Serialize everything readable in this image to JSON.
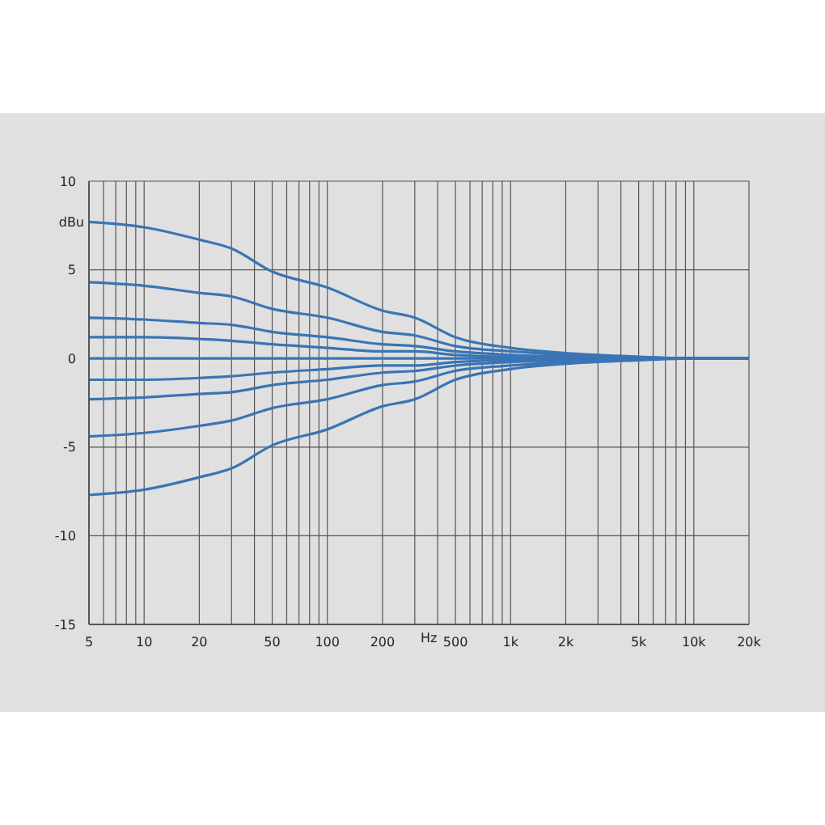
{
  "chart_data": {
    "type": "line",
    "xlabel": "Hz",
    "ylabel": "dBu",
    "log": "x",
    "grid": true,
    "legend": false,
    "marker": "none",
    "line_style": "solid",
    "x": [
      5,
      10,
      20,
      30,
      50,
      100,
      200,
      300,
      500,
      1000,
      2000,
      5000,
      10000,
      20000
    ],
    "xlim": [
      5,
      20000
    ],
    "xticks": [
      5,
      {
        "value": 6,
        "label": null
      },
      {
        "value": 7,
        "label": null
      },
      {
        "value": 8,
        "label": null
      },
      {
        "value": 9,
        "label": null
      },
      10,
      20,
      {
        "value": 30,
        "label": null
      },
      {
        "value": 40,
        "label": null
      },
      50,
      {
        "value": 60,
        "label": null
      },
      {
        "value": 70,
        "label": null
      },
      {
        "value": 80,
        "label": null
      },
      {
        "value": 90,
        "label": null
      },
      100,
      200,
      {
        "value": 300,
        "label": null
      },
      {
        "value": 400,
        "label": null
      },
      500,
      {
        "value": 600,
        "label": null
      },
      {
        "value": 700,
        "label": null
      },
      {
        "value": 800,
        "label": null
      },
      {
        "value": 900,
        "label": null
      },
      {
        "value": 1000,
        "label": "1k"
      },
      {
        "value": 2000,
        "label": "2k"
      },
      {
        "value": 3000,
        "label": null
      },
      {
        "value": 4000,
        "label": null
      },
      {
        "value": 5000,
        "label": "5k"
      },
      {
        "value": 6000,
        "label": null
      },
      {
        "value": 7000,
        "label": null
      },
      {
        "value": 8000,
        "label": null
      },
      {
        "value": 9000,
        "label": null
      },
      {
        "value": 10000,
        "label": "10k"
      },
      {
        "value": 20000,
        "label": "20k"
      }
    ],
    "ylim": [
      -15,
      10
    ],
    "yticks": [
      -15,
      -10,
      -5,
      0,
      5,
      10
    ],
    "series": [
      {
        "color": "#3a74b4",
        "values": [
          7.7,
          7.4,
          6.7,
          6.2,
          4.9,
          4.0,
          2.7,
          2.3,
          1.2,
          0.6,
          0.3,
          0.1,
          0,
          0
        ]
      },
      {
        "color": "#3a74b4",
        "values": [
          4.3,
          4.1,
          3.7,
          3.5,
          2.8,
          2.3,
          1.5,
          1.3,
          0.7,
          0.4,
          0.2,
          0,
          0,
          0
        ]
      },
      {
        "color": "#3a74b4",
        "values": [
          2.3,
          2.2,
          2.0,
          1.9,
          1.5,
          1.2,
          0.8,
          0.7,
          0.4,
          0.2,
          0.1,
          0,
          0,
          0
        ]
      },
      {
        "color": "#3a74b4",
        "values": [
          1.2,
          1.2,
          1.1,
          1.0,
          0.8,
          0.6,
          0.4,
          0.4,
          0.2,
          0.1,
          0.1,
          0,
          0,
          0
        ]
      },
      {
        "color": "#3a74b4",
        "values": [
          0,
          0,
          0,
          0,
          0,
          0,
          0,
          0,
          0,
          0,
          0,
          0,
          0,
          0
        ]
      },
      {
        "color": "#3a74b4",
        "values": [
          -1.2,
          -1.2,
          -1.1,
          -1.0,
          -0.8,
          -0.6,
          -0.4,
          -0.4,
          -0.2,
          -0.1,
          -0.1,
          0,
          0,
          0
        ]
      },
      {
        "color": "#3a74b4",
        "values": [
          -2.3,
          -2.2,
          -2.0,
          -1.9,
          -1.5,
          -1.2,
          -0.8,
          -0.7,
          -0.4,
          -0.2,
          -0.1,
          0,
          0,
          0
        ]
      },
      {
        "color": "#3a74b4",
        "values": [
          -4.4,
          -4.2,
          -3.8,
          -3.5,
          -2.8,
          -2.3,
          -1.5,
          -1.3,
          -0.7,
          -0.4,
          -0.2,
          0,
          0,
          0
        ]
      },
      {
        "color": "#3a74b4",
        "values": [
          -7.7,
          -7.4,
          -6.7,
          -6.2,
          -4.9,
          -4.0,
          -2.7,
          -2.3,
          -1.2,
          -0.6,
          -0.3,
          -0.1,
          0,
          0
        ]
      }
    ]
  }
}
